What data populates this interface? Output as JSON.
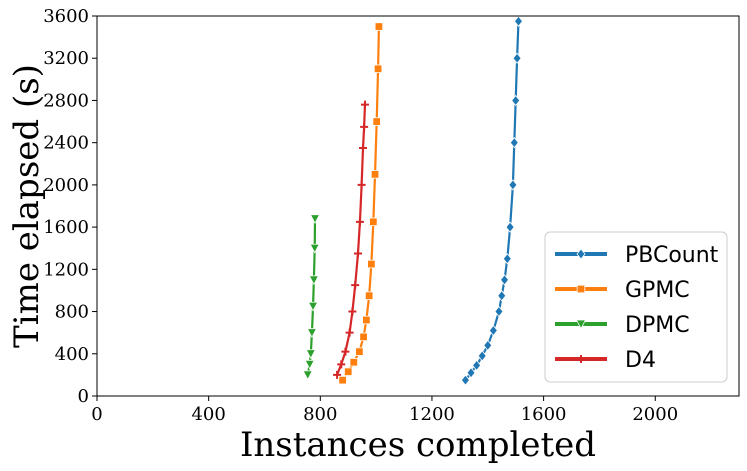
{
  "chart_data": {
    "type": "line",
    "title": "",
    "xlabel": "Instances completed",
    "ylabel": "Time elapsed (s)",
    "xlim": [
      0,
      2300
    ],
    "ylim": [
      0,
      3600
    ],
    "xticks": [
      0,
      400,
      800,
      1200,
      1600,
      2000
    ],
    "yticks": [
      0,
      400,
      800,
      1200,
      1600,
      2000,
      2400,
      2800,
      3200,
      3600
    ],
    "legend_position": "bottom-right",
    "series": [
      {
        "name": "PBCount",
        "color": "#1f77b4",
        "marker": "diamond",
        "points": [
          [
            1320,
            150
          ],
          [
            1340,
            220
          ],
          [
            1360,
            290
          ],
          [
            1380,
            380
          ],
          [
            1400,
            480
          ],
          [
            1420,
            620
          ],
          [
            1440,
            800
          ],
          [
            1450,
            950
          ],
          [
            1460,
            1100
          ],
          [
            1470,
            1300
          ],
          [
            1480,
            1600
          ],
          [
            1490,
            2000
          ],
          [
            1495,
            2400
          ],
          [
            1500,
            2800
          ],
          [
            1505,
            3200
          ],
          [
            1510,
            3550
          ]
        ]
      },
      {
        "name": "GPMC",
        "color": "#ff7f0e",
        "marker": "square",
        "points": [
          [
            880,
            150
          ],
          [
            900,
            230
          ],
          [
            920,
            320
          ],
          [
            940,
            420
          ],
          [
            955,
            560
          ],
          [
            965,
            720
          ],
          [
            975,
            950
          ],
          [
            983,
            1250
          ],
          [
            990,
            1650
          ],
          [
            996,
            2100
          ],
          [
            1002,
            2600
          ],
          [
            1007,
            3100
          ],
          [
            1010,
            3500
          ]
        ]
      },
      {
        "name": "DPMC",
        "color": "#2ca02c",
        "marker": "triangle-down",
        "points": [
          [
            755,
            200
          ],
          [
            762,
            300
          ],
          [
            766,
            400
          ],
          [
            770,
            600
          ],
          [
            774,
            850
          ],
          [
            777,
            1100
          ],
          [
            780,
            1400
          ],
          [
            781,
            1680
          ]
        ]
      },
      {
        "name": "D4",
        "color": "#d62728",
        "marker": "plus",
        "points": [
          [
            860,
            200
          ],
          [
            875,
            300
          ],
          [
            890,
            420
          ],
          [
            905,
            600
          ],
          [
            915,
            800
          ],
          [
            925,
            1050
          ],
          [
            935,
            1350
          ],
          [
            942,
            1650
          ],
          [
            948,
            2000
          ],
          [
            953,
            2350
          ],
          [
            957,
            2550
          ],
          [
            960,
            2760
          ]
        ]
      }
    ]
  }
}
